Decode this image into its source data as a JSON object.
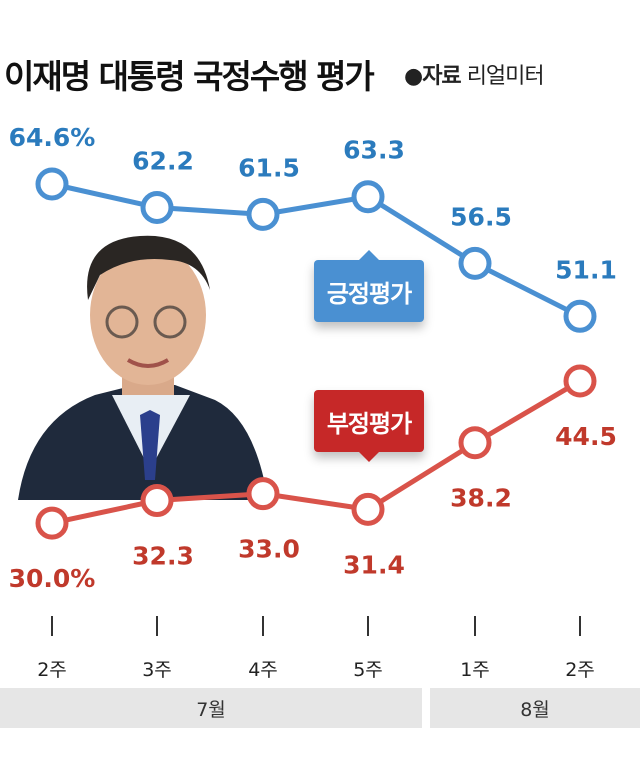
{
  "title": "이재명 대통령 국정수행 평가",
  "source": {
    "label": "●자료",
    "name": "리얼미터"
  },
  "chart_data": {
    "type": "line",
    "categories": [
      "2주",
      "3주",
      "4주",
      "5주",
      "1주",
      "2주"
    ],
    "groups": [
      {
        "label": "7월",
        "span": 4
      },
      {
        "label": "8월",
        "span": 2
      }
    ],
    "series": [
      {
        "name": "긍정평가",
        "color": "#4a90d2",
        "label_color": "#2b7bbd",
        "values": [
          64.6,
          62.2,
          61.5,
          63.3,
          56.5,
          51.1
        ],
        "labels": [
          "64.6%",
          "62.2",
          "61.5",
          "63.3",
          "56.5",
          "51.1"
        ]
      },
      {
        "name": "부정평가",
        "color": "#d9534a",
        "label_color": "#c0392b",
        "values": [
          30.0,
          32.3,
          33.0,
          31.4,
          38.2,
          44.5
        ],
        "labels": [
          "30.0%",
          "32.3",
          "33.0",
          "31.4",
          "38.2",
          "44.5"
        ]
      }
    ],
    "grid": false,
    "legend": "inline badges"
  }
}
